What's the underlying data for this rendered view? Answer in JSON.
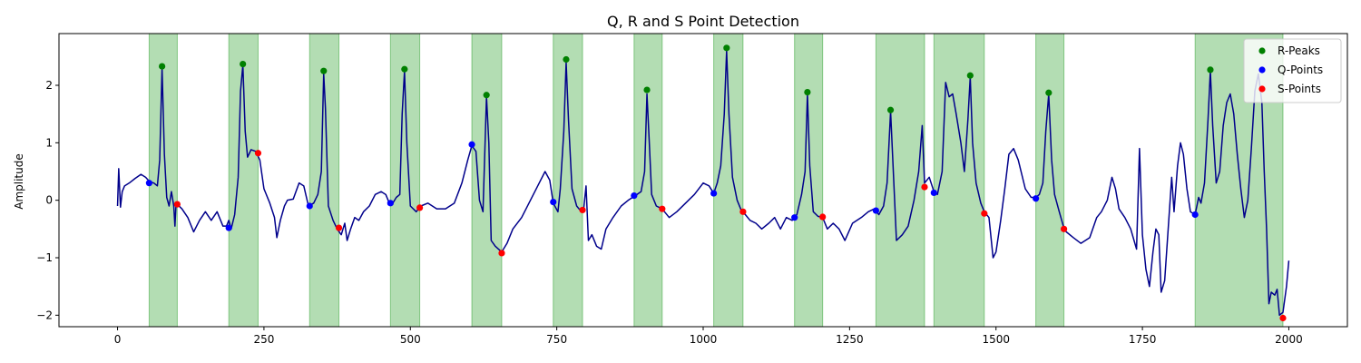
{
  "chart_data": {
    "type": "line",
    "title": "Q, R and S Point Detection",
    "xlabel": "",
    "ylabel": "Amplitude",
    "xlim": [
      -100,
      2100
    ],
    "ylim": [
      -2.2,
      2.9
    ],
    "xticks": [
      0,
      250,
      500,
      750,
      1000,
      1250,
      1500,
      1750,
      2000
    ],
    "yticks": [
      -2,
      -1,
      0,
      1,
      2
    ],
    "grid": false,
    "legend_position": "top-right",
    "colors": {
      "signal": "#00008b",
      "r_peaks": "#008000",
      "q_points": "#0000ff",
      "s_points": "#ff0000",
      "region": "#2ca02c"
    },
    "signal_keypoints": [
      [
        0,
        -0.1
      ],
      [
        2,
        0.55
      ],
      [
        5,
        -0.12
      ],
      [
        8,
        0.15
      ],
      [
        12,
        0.25
      ],
      [
        20,
        0.3
      ],
      [
        30,
        0.38
      ],
      [
        40,
        0.45
      ],
      [
        48,
        0.4
      ],
      [
        55,
        0.32
      ],
      [
        62,
        0.3
      ],
      [
        68,
        0.25
      ],
      [
        72,
        0.7
      ],
      [
        76,
        2.3
      ],
      [
        80,
        0.8
      ],
      [
        84,
        0.05
      ],
      [
        88,
        -0.1
      ],
      [
        92,
        0.15
      ],
      [
        96,
        -0.1
      ],
      [
        98,
        -0.45
      ],
      [
        100,
        -0.05
      ],
      [
        110,
        -0.15
      ],
      [
        120,
        -0.3
      ],
      [
        130,
        -0.55
      ],
      [
        140,
        -0.35
      ],
      [
        150,
        -0.2
      ],
      [
        160,
        -0.35
      ],
      [
        170,
        -0.2
      ],
      [
        180,
        -0.45
      ],
      [
        186,
        -0.45
      ],
      [
        190,
        -0.35
      ],
      [
        194,
        -0.5
      ],
      [
        200,
        -0.25
      ],
      [
        206,
        0.4
      ],
      [
        210,
        1.9
      ],
      [
        214,
        2.35
      ],
      [
        218,
        1.2
      ],
      [
        222,
        0.75
      ],
      [
        228,
        0.88
      ],
      [
        236,
        0.85
      ],
      [
        243,
        0.7
      ],
      [
        250,
        0.2
      ],
      [
        260,
        -0.05
      ],
      [
        268,
        -0.3
      ],
      [
        272,
        -0.65
      ],
      [
        278,
        -0.35
      ],
      [
        285,
        -0.1
      ],
      [
        290,
        0
      ],
      [
        300,
        0.02
      ],
      [
        310,
        0.3
      ],
      [
        318,
        0.25
      ],
      [
        326,
        -0.1
      ],
      [
        335,
        -0.05
      ],
      [
        342,
        0.1
      ],
      [
        348,
        0.5
      ],
      [
        352,
        2.2
      ],
      [
        355,
        1.6
      ],
      [
        360,
        -0.1
      ],
      [
        368,
        -0.35
      ],
      [
        375,
        -0.5
      ],
      [
        382,
        -0.6
      ],
      [
        388,
        -0.4
      ],
      [
        392,
        -0.7
      ],
      [
        398,
        -0.5
      ],
      [
        405,
        -0.3
      ],
      [
        412,
        -0.35
      ],
      [
        420,
        -0.2
      ],
      [
        430,
        -0.1
      ],
      [
        440,
        0.1
      ],
      [
        450,
        0.15
      ],
      [
        458,
        0.1
      ],
      [
        464,
        -0.05
      ],
      [
        470,
        -0.05
      ],
      [
        476,
        0.05
      ],
      [
        482,
        0.1
      ],
      [
        486,
        1.5
      ],
      [
        490,
        2.25
      ],
      [
        494,
        1.0
      ],
      [
        500,
        -0.1
      ],
      [
        510,
        -0.2
      ],
      [
        518,
        -0.1
      ],
      [
        530,
        -0.05
      ],
      [
        545,
        -0.15
      ],
      [
        560,
        -0.15
      ],
      [
        575,
        -0.05
      ],
      [
        588,
        0.3
      ],
      [
        598,
        0.7
      ],
      [
        605,
        0.95
      ],
      [
        612,
        0.85
      ],
      [
        618,
        0
      ],
      [
        624,
        -0.2
      ],
      [
        630,
        1.8
      ],
      [
        634,
        1.0
      ],
      [
        638,
        -0.7
      ],
      [
        645,
        -0.8
      ],
      [
        656,
        -0.9
      ],
      [
        665,
        -0.75
      ],
      [
        675,
        -0.5
      ],
      [
        690,
        -0.3
      ],
      [
        705,
        0
      ],
      [
        720,
        0.3
      ],
      [
        730,
        0.5
      ],
      [
        738,
        0.35
      ],
      [
        744,
        -0.05
      ],
      [
        752,
        -0.2
      ],
      [
        756,
        0.2
      ],
      [
        762,
        1.2
      ],
      [
        766,
        2.4
      ],
      [
        770,
        1.4
      ],
      [
        776,
        0.2
      ],
      [
        784,
        -0.1
      ],
      [
        792,
        -0.2
      ],
      [
        796,
        -0.15
      ],
      [
        800,
        0.25
      ],
      [
        804,
        -0.7
      ],
      [
        810,
        -0.6
      ],
      [
        818,
        -0.8
      ],
      [
        826,
        -0.85
      ],
      [
        834,
        -0.5
      ],
      [
        846,
        -0.3
      ],
      [
        860,
        -0.1
      ],
      [
        872,
        0
      ],
      [
        884,
        0.08
      ],
      [
        894,
        0.15
      ],
      [
        900,
        0.5
      ],
      [
        904,
        1.85
      ],
      [
        908,
        1.0
      ],
      [
        912,
        0.1
      ],
      [
        920,
        -0.1
      ],
      [
        930,
        -0.15
      ],
      [
        942,
        -0.3
      ],
      [
        955,
        -0.2
      ],
      [
        970,
        -0.05
      ],
      [
        985,
        0.1
      ],
      [
        1000,
        0.3
      ],
      [
        1010,
        0.25
      ],
      [
        1018,
        0.12
      ],
      [
        1024,
        0.3
      ],
      [
        1030,
        0.6
      ],
      [
        1036,
        1.5
      ],
      [
        1040,
        2.6
      ],
      [
        1044,
        1.5
      ],
      [
        1050,
        0.4
      ],
      [
        1058,
        0
      ],
      [
        1066,
        -0.2
      ],
      [
        1072,
        -0.25
      ],
      [
        1080,
        -0.35
      ],
      [
        1090,
        -0.4
      ],
      [
        1100,
        -0.5
      ],
      [
        1112,
        -0.4
      ],
      [
        1122,
        -0.3
      ],
      [
        1132,
        -0.5
      ],
      [
        1142,
        -0.3
      ],
      [
        1152,
        -0.35
      ],
      [
        1160,
        -0.25
      ],
      [
        1168,
        0.1
      ],
      [
        1174,
        0.5
      ],
      [
        1178,
        1.85
      ],
      [
        1182,
        0.6
      ],
      [
        1188,
        -0.2
      ],
      [
        1196,
        -0.28
      ],
      [
        1204,
        -0.3
      ],
      [
        1212,
        -0.5
      ],
      [
        1222,
        -0.4
      ],
      [
        1232,
        -0.5
      ],
      [
        1242,
        -0.7
      ],
      [
        1255,
        -0.4
      ],
      [
        1270,
        -0.3
      ],
      [
        1282,
        -0.2
      ],
      [
        1292,
        -0.15
      ],
      [
        1300,
        -0.25
      ],
      [
        1308,
        -0.1
      ],
      [
        1314,
        0.3
      ],
      [
        1320,
        1.55
      ],
      [
        1326,
        0.2
      ],
      [
        1330,
        -0.7
      ],
      [
        1340,
        -0.6
      ],
      [
        1350,
        -0.45
      ],
      [
        1360,
        0
      ],
      [
        1368,
        0.5
      ],
      [
        1374,
        1.3
      ],
      [
        1378,
        0.3
      ],
      [
        1386,
        0.4
      ],
      [
        1394,
        0.15
      ],
      [
        1400,
        0.1
      ],
      [
        1408,
        0.5
      ],
      [
        1414,
        2.05
      ],
      [
        1420,
        1.8
      ],
      [
        1426,
        1.85
      ],
      [
        1432,
        1.5
      ],
      [
        1440,
        1.0
      ],
      [
        1446,
        0.5
      ],
      [
        1452,
        1.4
      ],
      [
        1456,
        2.15
      ],
      [
        1460,
        1.0
      ],
      [
        1466,
        0.3
      ],
      [
        1474,
        -0.05
      ],
      [
        1480,
        -0.2
      ],
      [
        1488,
        -0.3
      ],
      [
        1495,
        -1.0
      ],
      [
        1500,
        -0.9
      ],
      [
        1508,
        -0.35
      ],
      [
        1515,
        0.2
      ],
      [
        1522,
        0.8
      ],
      [
        1530,
        0.9
      ],
      [
        1538,
        0.7
      ],
      [
        1550,
        0.2
      ],
      [
        1560,
        0.05
      ],
      [
        1568,
        0.05
      ],
      [
        1574,
        0.1
      ],
      [
        1580,
        0.3
      ],
      [
        1585,
        1.2
      ],
      [
        1590,
        1.85
      ],
      [
        1595,
        0.7
      ],
      [
        1600,
        0.1
      ],
      [
        1608,
        -0.2
      ],
      [
        1615,
        -0.45
      ],
      [
        1620,
        -0.55
      ],
      [
        1632,
        -0.65
      ],
      [
        1645,
        -0.75
      ],
      [
        1660,
        -0.65
      ],
      [
        1672,
        -0.3
      ],
      [
        1680,
        -0.2
      ],
      [
        1690,
        0
      ],
      [
        1698,
        0.4
      ],
      [
        1704,
        0.2
      ],
      [
        1710,
        -0.15
      ],
      [
        1720,
        -0.3
      ],
      [
        1730,
        -0.5
      ],
      [
        1740,
        -0.85
      ],
      [
        1745,
        0.9
      ],
      [
        1750,
        -0.6
      ],
      [
        1756,
        -1.2
      ],
      [
        1762,
        -1.5
      ],
      [
        1768,
        -0.9
      ],
      [
        1773,
        -0.5
      ],
      [
        1778,
        -0.6
      ],
      [
        1782,
        -1.6
      ],
      [
        1788,
        -1.4
      ],
      [
        1794,
        -0.5
      ],
      [
        1800,
        0.4
      ],
      [
        1804,
        -0.2
      ],
      [
        1810,
        0.6
      ],
      [
        1815,
        1.0
      ],
      [
        1820,
        0.8
      ],
      [
        1826,
        0.2
      ],
      [
        1832,
        -0.2
      ],
      [
        1840,
        -0.25
      ],
      [
        1846,
        0.05
      ],
      [
        1850,
        -0.05
      ],
      [
        1856,
        0.3
      ],
      [
        1862,
        1.4
      ],
      [
        1866,
        2.25
      ],
      [
        1870,
        1.3
      ],
      [
        1876,
        0.3
      ],
      [
        1882,
        0.5
      ],
      [
        1888,
        1.3
      ],
      [
        1894,
        1.7
      ],
      [
        1900,
        1.85
      ],
      [
        1906,
        1.5
      ],
      [
        1912,
        0.8
      ],
      [
        1918,
        0.2
      ],
      [
        1924,
        -0.3
      ],
      [
        1930,
        0
      ],
      [
        1936,
        0.9
      ],
      [
        1942,
        1.9
      ],
      [
        1948,
        2.2
      ],
      [
        1954,
        1.7
      ],
      [
        1958,
        0.5
      ],
      [
        1962,
        -0.5
      ],
      [
        1966,
        -1.8
      ],
      [
        1970,
        -1.6
      ],
      [
        1976,
        -1.65
      ],
      [
        1980,
        -1.55
      ],
      [
        1984,
        -2.0
      ],
      [
        1990,
        -1.95
      ],
      [
        1996,
        -1.5
      ],
      [
        2000,
        -1.05
      ]
    ],
    "r_peaks": [
      [
        76,
        2.33
      ],
      [
        214,
        2.37
      ],
      [
        352,
        2.25
      ],
      [
        490,
        2.28
      ],
      [
        630,
        1.83
      ],
      [
        766,
        2.45
      ],
      [
        904,
        1.92
      ],
      [
        1040,
        2.65
      ],
      [
        1178,
        1.88
      ],
      [
        1320,
        1.57
      ],
      [
        1456,
        2.17
      ],
      [
        1590,
        1.87
      ],
      [
        1866,
        2.27
      ]
    ],
    "q_points": [
      [
        54,
        0.3
      ],
      [
        190,
        -0.48
      ],
      [
        328,
        -0.1
      ],
      [
        466,
        -0.05
      ],
      [
        605,
        0.97
      ],
      [
        744,
        -0.03
      ],
      [
        882,
        0.08
      ],
      [
        1018,
        0.12
      ],
      [
        1156,
        -0.3
      ],
      [
        1295,
        -0.18
      ],
      [
        1394,
        0.13
      ],
      [
        1568,
        0.03
      ],
      [
        1840,
        -0.25
      ]
    ],
    "s_points": [
      [
        102,
        -0.07
      ],
      [
        240,
        0.82
      ],
      [
        378,
        -0.48
      ],
      [
        516,
        -0.13
      ],
      [
        656,
        -0.92
      ],
      [
        794,
        -0.17
      ],
      [
        930,
        -0.15
      ],
      [
        1068,
        -0.2
      ],
      [
        1204,
        -0.29
      ],
      [
        1378,
        0.23
      ],
      [
        1480,
        -0.23
      ],
      [
        1616,
        -0.5
      ],
      [
        1990,
        -2.05
      ]
    ],
    "regions": [
      {
        "x0": 54,
        "x1": 102
      },
      {
        "x0": 190,
        "x1": 240
      },
      {
        "x0": 328,
        "x1": 378
      },
      {
        "x0": 466,
        "x1": 516
      },
      {
        "x0": 605,
        "x1": 656
      },
      {
        "x0": 744,
        "x1": 794
      },
      {
        "x0": 882,
        "x1": 930
      },
      {
        "x0": 1018,
        "x1": 1068
      },
      {
        "x0": 1156,
        "x1": 1204
      },
      {
        "x0": 1295,
        "x1": 1378
      },
      {
        "x0": 1394,
        "x1": 1480
      },
      {
        "x0": 1568,
        "x1": 1616
      },
      {
        "x0": 1840,
        "x1": 1990
      }
    ],
    "legend": [
      {
        "label": "R-Peaks",
        "color": "#008000"
      },
      {
        "label": "Q-Points",
        "color": "#0000ff"
      },
      {
        "label": "S-Points",
        "color": "#ff0000"
      }
    ]
  }
}
